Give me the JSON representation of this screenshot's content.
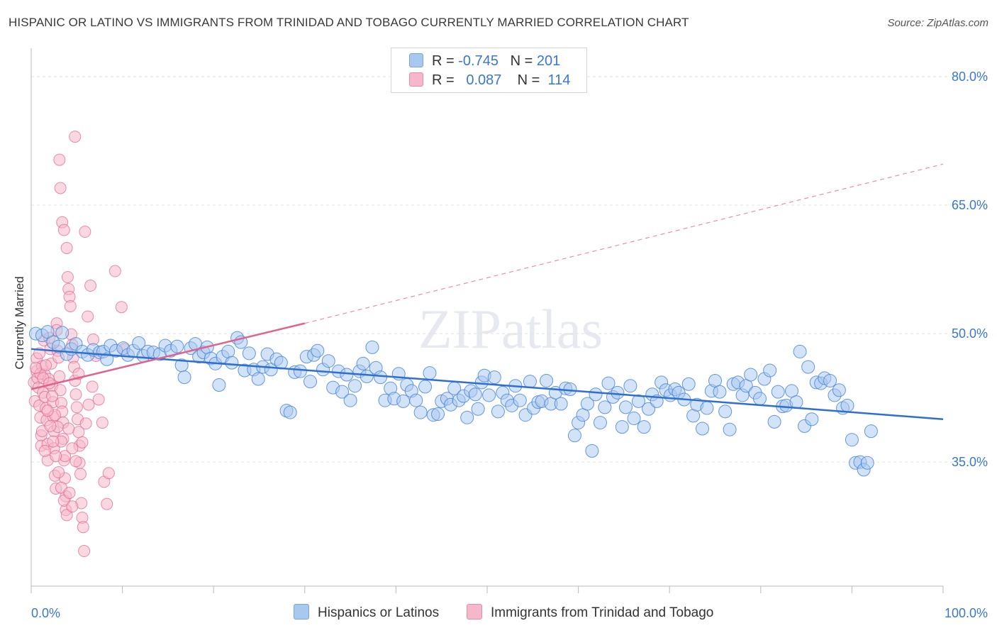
{
  "title": "HISPANIC OR LATINO VS IMMIGRANTS FROM TRINIDAD AND TOBAGO CURRENTLY MARRIED CORRELATION CHART",
  "source": "Source: ZipAtlas.com",
  "watermark": "ZIPatlas",
  "legend": {
    "rows": [
      {
        "r_label": "R = ",
        "r_value": "-0.745",
        "n_label": "N = ",
        "n_value": "201",
        "color": "#a8c8f0"
      },
      {
        "r_label": "R = ",
        "r_value": "0.087",
        "n_label": "N = ",
        "n_value": "114",
        "color": "#f5b8cb"
      }
    ]
  },
  "chart_data": {
    "type": "scatter",
    "ylabel": "Currently Married",
    "xlabel": "",
    "x_tick_labels": [
      "0.0%",
      "100.0%"
    ],
    "y_tick_labels": [
      "35.0%",
      "50.0%",
      "65.0%",
      "80.0%"
    ],
    "y_ticks": [
      35,
      50,
      65,
      80
    ],
    "xlim": [
      0,
      100
    ],
    "ylim": [
      20.5,
      82.5
    ],
    "grid": true,
    "series": [
      {
        "name": "Hispanics or Latinos",
        "color": "#4a86d8",
        "fill": "#a8c8f0",
        "trend": {
          "x": [
            0,
            100
          ],
          "y": [
            48.2,
            40.0
          ],
          "dashed": false
        },
        "points": [
          [
            0.5,
            50.0
          ],
          [
            1.2,
            49.8
          ],
          [
            1.8,
            50.2
          ],
          [
            2.4,
            49.0
          ],
          [
            3.0,
            48.5
          ],
          [
            3.4,
            50.1
          ],
          [
            3.9,
            47.6
          ],
          [
            4.4,
            48.2
          ],
          [
            4.9,
            48.8
          ],
          [
            5.6,
            47.9
          ],
          [
            6.2,
            47.5
          ],
          [
            6.8,
            48.1
          ],
          [
            7.5,
            47.8
          ],
          [
            7.9,
            47.9
          ],
          [
            8.3,
            47.0
          ],
          [
            8.7,
            48.6
          ],
          [
            9.3,
            48.0
          ],
          [
            10.1,
            48.3
          ],
          [
            10.6,
            47.5
          ],
          [
            11.2,
            48.0
          ],
          [
            11.8,
            48.9
          ],
          [
            12.3,
            47.4
          ],
          [
            12.8,
            47.9
          ],
          [
            13.4,
            47.8
          ],
          [
            14.1,
            47.6
          ],
          [
            14.7,
            48.6
          ],
          [
            15.3,
            48.0
          ],
          [
            16.0,
            48.5
          ],
          [
            16.5,
            46.3
          ],
          [
            16.8,
            44.9
          ],
          [
            17.5,
            48.3
          ],
          [
            18.0,
            48.8
          ],
          [
            18.4,
            47.3
          ],
          [
            18.9,
            47.8
          ],
          [
            19.3,
            48.4
          ],
          [
            19.7,
            47.1
          ],
          [
            20.2,
            46.5
          ],
          [
            20.6,
            44.0
          ],
          [
            21.0,
            47.3
          ],
          [
            21.6,
            47.9
          ],
          [
            22.0,
            46.6
          ],
          [
            22.6,
            49.5
          ],
          [
            23.0,
            49.0
          ],
          [
            23.4,
            45.7
          ],
          [
            23.9,
            47.7
          ],
          [
            24.4,
            45.8
          ],
          [
            24.9,
            44.7
          ],
          [
            25.4,
            46.1
          ],
          [
            25.9,
            47.6
          ],
          [
            26.3,
            45.8
          ],
          [
            26.9,
            47.0
          ],
          [
            27.4,
            46.6
          ],
          [
            28.0,
            41.0
          ],
          [
            28.4,
            40.8
          ],
          [
            28.9,
            45.5
          ],
          [
            29.5,
            45.6
          ],
          [
            30.2,
            47.3
          ],
          [
            30.6,
            44.4
          ],
          [
            31.0,
            47.5
          ],
          [
            31.4,
            48.0
          ],
          [
            32.0,
            45.8
          ],
          [
            32.6,
            46.8
          ],
          [
            33.1,
            43.7
          ],
          [
            33.7,
            45.6
          ],
          [
            34.1,
            43.2
          ],
          [
            34.6,
            45.2
          ],
          [
            35.0,
            42.2
          ],
          [
            35.5,
            43.9
          ],
          [
            36.0,
            45.6
          ],
          [
            36.4,
            46.5
          ],
          [
            36.8,
            45.0
          ],
          [
            37.4,
            48.4
          ],
          [
            37.8,
            46.0
          ],
          [
            38.3,
            44.9
          ],
          [
            38.8,
            42.2
          ],
          [
            39.4,
            43.6
          ],
          [
            39.8,
            42.4
          ],
          [
            40.3,
            45.3
          ],
          [
            40.8,
            42.1
          ],
          [
            41.2,
            44.0
          ],
          [
            41.7,
            43.3
          ],
          [
            42.2,
            42.2
          ],
          [
            42.7,
            40.8
          ],
          [
            43.2,
            43.8
          ],
          [
            43.7,
            45.4
          ],
          [
            44.1,
            40.5
          ],
          [
            44.6,
            40.6
          ],
          [
            45.0,
            42.1
          ],
          [
            45.6,
            42.4
          ],
          [
            46.0,
            41.7
          ],
          [
            46.4,
            43.6
          ],
          [
            46.9,
            42.2
          ],
          [
            47.4,
            42.7
          ],
          [
            47.8,
            40.2
          ],
          [
            48.2,
            43.3
          ],
          [
            48.7,
            42.9
          ],
          [
            49.0,
            41.2
          ],
          [
            49.4,
            44.3
          ],
          [
            49.7,
            45.1
          ],
          [
            50.2,
            42.8
          ],
          [
            50.8,
            44.9
          ],
          [
            51.2,
            40.9
          ],
          [
            51.7,
            43.1
          ],
          [
            52.2,
            42.2
          ],
          [
            52.7,
            41.6
          ],
          [
            53.1,
            43.9
          ],
          [
            53.6,
            42.2
          ],
          [
            54.2,
            40.5
          ],
          [
            54.7,
            44.4
          ],
          [
            55.1,
            41.3
          ],
          [
            55.6,
            42.0
          ],
          [
            56.0,
            42.1
          ],
          [
            56.5,
            44.5
          ],
          [
            57.0,
            41.8
          ],
          [
            57.5,
            43.1
          ],
          [
            58.1,
            41.8
          ],
          [
            58.6,
            43.6
          ],
          [
            59.1,
            43.5
          ],
          [
            59.6,
            38.1
          ],
          [
            60.0,
            39.6
          ],
          [
            60.5,
            40.5
          ],
          [
            61.0,
            41.8
          ],
          [
            61.5,
            36.3
          ],
          [
            61.9,
            42.9
          ],
          [
            62.4,
            39.6
          ],
          [
            62.9,
            41.4
          ],
          [
            63.3,
            44.2
          ],
          [
            63.8,
            42.6
          ],
          [
            64.3,
            43.1
          ],
          [
            64.8,
            39.1
          ],
          [
            65.2,
            41.4
          ],
          [
            65.7,
            43.9
          ],
          [
            66.1,
            40.1
          ],
          [
            66.6,
            42.1
          ],
          [
            67.2,
            39.1
          ],
          [
            67.7,
            41.2
          ],
          [
            68.1,
            42.9
          ],
          [
            68.6,
            42.1
          ],
          [
            69.1,
            44.3
          ],
          [
            69.6,
            43.4
          ],
          [
            70.1,
            42.8
          ],
          [
            70.6,
            43.5
          ],
          [
            71.0,
            43.1
          ],
          [
            71.6,
            42.3
          ],
          [
            72.1,
            44.1
          ],
          [
            72.6,
            40.4
          ],
          [
            73.0,
            41.7
          ],
          [
            73.6,
            38.9
          ],
          [
            74.1,
            41.3
          ],
          [
            74.6,
            43.3
          ],
          [
            75.0,
            44.5
          ],
          [
            75.5,
            43.2
          ],
          [
            76.1,
            40.9
          ],
          [
            76.6,
            38.8
          ],
          [
            77.0,
            44.1
          ],
          [
            77.5,
            44.3
          ],
          [
            78.0,
            42.8
          ],
          [
            78.4,
            43.9
          ],
          [
            78.9,
            45.2
          ],
          [
            79.4,
            43.1
          ],
          [
            79.9,
            42.4
          ],
          [
            80.4,
            44.7
          ],
          [
            81.0,
            45.7
          ],
          [
            81.5,
            39.7
          ],
          [
            81.9,
            43.2
          ],
          [
            82.4,
            41.5
          ],
          [
            82.8,
            41.6
          ],
          [
            83.4,
            43.3
          ],
          [
            83.9,
            42.0
          ],
          [
            84.3,
            47.9
          ],
          [
            84.8,
            39.2
          ],
          [
            85.2,
            46.1
          ],
          [
            85.6,
            40.0
          ],
          [
            86.1,
            44.3
          ],
          [
            86.6,
            44.2
          ],
          [
            87.0,
            44.8
          ],
          [
            87.6,
            44.5
          ],
          [
            88.1,
            42.8
          ],
          [
            88.6,
            43.4
          ],
          [
            89.0,
            41.3
          ],
          [
            89.5,
            41.6
          ],
          [
            90.0,
            37.6
          ],
          [
            90.4,
            34.9
          ],
          [
            90.9,
            35.0
          ],
          [
            91.3,
            34.1
          ],
          [
            91.7,
            34.9
          ],
          [
            92.1,
            38.6
          ]
        ]
      },
      {
        "name": "Immigrants from Trinidad and Tobago",
        "color": "#e0628d",
        "fill": "#f5b8cb",
        "trend": {
          "x": [
            0,
            30
          ],
          "y": [
            43.5,
            51.2
          ],
          "dashed": false,
          "extend_to": [
            100,
            69.8
          ]
        },
        "points": [
          [
            0.3,
            44.3
          ],
          [
            0.4,
            42.1
          ],
          [
            0.6,
            45.6
          ],
          [
            0.6,
            47.1
          ],
          [
            0.7,
            44.8
          ],
          [
            0.8,
            43.7
          ],
          [
            0.9,
            41.6
          ],
          [
            1.0,
            40.2
          ],
          [
            1.1,
            38.1
          ],
          [
            1.1,
            36.9
          ],
          [
            1.2,
            46.2
          ],
          [
            1.3,
            43.1
          ],
          [
            1.4,
            49.2
          ],
          [
            1.5,
            42.6
          ],
          [
            1.5,
            45.2
          ],
          [
            1.6,
            41.3
          ],
          [
            1.7,
            39.9
          ],
          [
            1.8,
            37.1
          ],
          [
            1.8,
            35.2
          ],
          [
            1.9,
            44.7
          ],
          [
            2.0,
            49.5
          ],
          [
            2.1,
            48.2
          ],
          [
            2.2,
            46.5
          ],
          [
            2.3,
            43.9
          ],
          [
            2.4,
            42.0
          ],
          [
            2.4,
            40.3
          ],
          [
            2.5,
            38.6
          ],
          [
            2.5,
            36.6
          ],
          [
            2.6,
            33.4
          ],
          [
            2.7,
            31.9
          ],
          [
            2.8,
            51.2
          ],
          [
            2.8,
            50.4
          ],
          [
            2.9,
            48.0
          ],
          [
            3.0,
            47.2
          ],
          [
            3.1,
            45.0
          ],
          [
            3.2,
            43.4
          ],
          [
            3.3,
            41.9
          ],
          [
            3.4,
            40.9
          ],
          [
            3.5,
            39.6
          ],
          [
            3.5,
            37.7
          ],
          [
            3.6,
            35.2
          ],
          [
            3.7,
            33.1
          ],
          [
            3.8,
            31.0
          ],
          [
            3.8,
            29.4
          ],
          [
            3.9,
            60.0
          ],
          [
            4.0,
            56.6
          ],
          [
            4.1,
            55.2
          ],
          [
            4.2,
            54.3
          ],
          [
            4.3,
            53.2
          ],
          [
            4.4,
            49.9
          ],
          [
            4.5,
            48.7
          ],
          [
            4.6,
            47.2
          ],
          [
            4.7,
            46.1
          ],
          [
            4.8,
            44.5
          ],
          [
            4.9,
            42.9
          ],
          [
            5.0,
            41.4
          ],
          [
            5.1,
            40.0
          ],
          [
            5.2,
            38.5
          ],
          [
            5.3,
            36.9
          ],
          [
            5.3,
            34.9
          ],
          [
            5.4,
            33.6
          ],
          [
            5.5,
            30.2
          ],
          [
            5.6,
            28.5
          ],
          [
            5.7,
            27.4
          ],
          [
            5.8,
            24.6
          ],
          [
            3.2,
            67.0
          ],
          [
            3.1,
            70.3
          ],
          [
            3.4,
            63.0
          ],
          [
            3.6,
            62.1
          ],
          [
            4.8,
            73.0
          ],
          [
            5.9,
            61.9
          ],
          [
            6.2,
            52.0
          ],
          [
            6.5,
            55.6
          ],
          [
            6.8,
            49.3
          ],
          [
            7.1,
            47.4
          ],
          [
            7.4,
            42.3
          ],
          [
            7.8,
            39.6
          ],
          [
            8.0,
            32.7
          ],
          [
            8.3,
            30.1
          ],
          [
            8.5,
            33.7
          ],
          [
            9.2,
            57.3
          ],
          [
            9.9,
            53.1
          ],
          [
            10.2,
            48.2
          ],
          [
            1.0,
            45.3
          ],
          [
            1.3,
            44.8
          ],
          [
            1.6,
            46.3
          ],
          [
            2.0,
            44.2
          ],
          [
            2.3,
            42.7
          ],
          [
            2.6,
            40.5
          ],
          [
            2.9,
            39.1
          ],
          [
            3.3,
            37.4
          ],
          [
            3.7,
            35.7
          ],
          [
            4.1,
            38.9
          ],
          [
            4.5,
            36.6
          ],
          [
            4.9,
            35.1
          ],
          [
            5.2,
            45.3
          ],
          [
            5.6,
            37.3
          ],
          [
            6.0,
            39.5
          ],
          [
            6.3,
            41.7
          ],
          [
            6.7,
            43.8
          ],
          [
            0.5,
            46.0
          ],
          [
            0.9,
            47.7
          ],
          [
            1.2,
            38.6
          ],
          [
            1.5,
            36.3
          ],
          [
            1.8,
            41.0
          ],
          [
            2.1,
            39.2
          ],
          [
            2.4,
            37.4
          ],
          [
            2.7,
            35.7
          ],
          [
            3.0,
            33.8
          ],
          [
            3.3,
            32.0
          ],
          [
            3.6,
            30.5
          ],
          [
            3.9,
            28.8
          ],
          [
            4.2,
            31.4
          ],
          [
            4.5,
            29.8
          ]
        ]
      }
    ]
  },
  "bottom_legend": [
    {
      "label": "Hispanics or Latinos",
      "color": "#a8c8f0"
    },
    {
      "label": "Immigrants from Trinidad and Tobago",
      "color": "#f5b8cb"
    }
  ]
}
